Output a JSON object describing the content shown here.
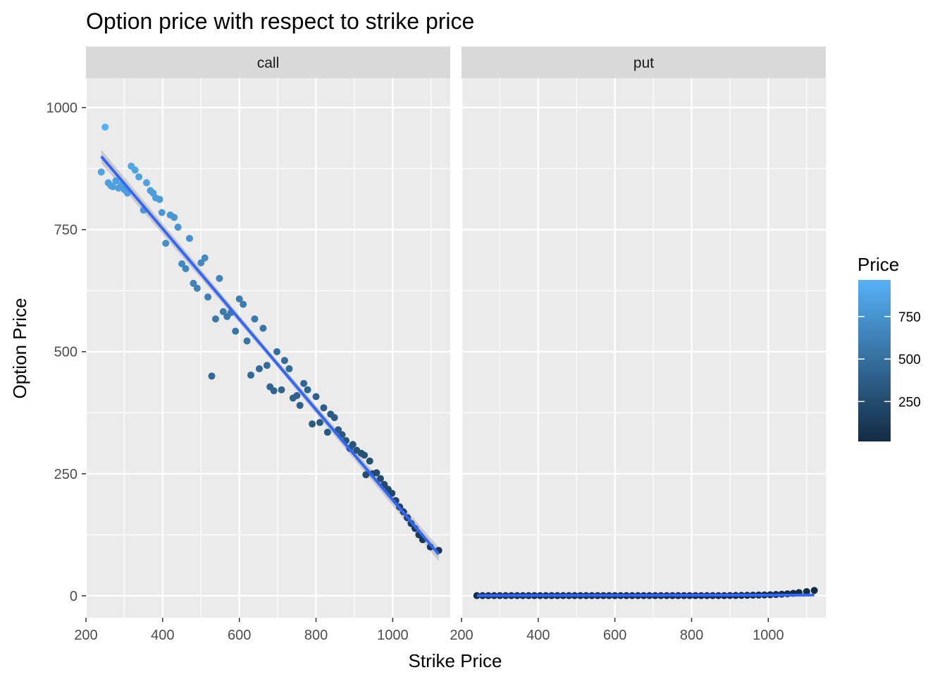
{
  "chart_data": {
    "type": "scatter",
    "title": "Option price with respect to strike price",
    "xlabel": "Strike Price",
    "ylabel": "Option Price",
    "xlim": [
      200,
      1150
    ],
    "ylim": [
      -45,
      1060
    ],
    "x_ticks": [
      200,
      400,
      600,
      800,
      1000
    ],
    "y_ticks": [
      0,
      250,
      500,
      750,
      1000
    ],
    "x_tick_labels": [
      "200",
      "400",
      "600",
      "800",
      "1000"
    ],
    "y_tick_labels": [
      "0",
      "250",
      "500",
      "750",
      "1000"
    ],
    "grid": true,
    "legend": {
      "title": "Price",
      "position": "right",
      "type": "colorbar",
      "range": [
        15,
        965
      ],
      "breaks": [
        250,
        500,
        750
      ],
      "break_labels": [
        "250",
        "500",
        "750"
      ],
      "low_color": "#132B43",
      "high_color": "#56B1F7"
    },
    "panels": [
      {
        "label": "call",
        "fit_line": {
          "x": [
            240,
            1120
          ],
          "y": [
            900,
            85
          ],
          "color": "#3366FF"
        },
        "points": [
          [
            240,
            868
          ],
          [
            250,
            960
          ],
          [
            258,
            846
          ],
          [
            265,
            840
          ],
          [
            270,
            838
          ],
          [
            278,
            850
          ],
          [
            285,
            835
          ],
          [
            292,
            842
          ],
          [
            300,
            832
          ],
          [
            308,
            825
          ],
          [
            318,
            880
          ],
          [
            328,
            872
          ],
          [
            338,
            858
          ],
          [
            350,
            790
          ],
          [
            358,
            846
          ],
          [
            368,
            830
          ],
          [
            375,
            825
          ],
          [
            382,
            815
          ],
          [
            392,
            812
          ],
          [
            398,
            785
          ],
          [
            408,
            722
          ],
          [
            420,
            780
          ],
          [
            430,
            775
          ],
          [
            440,
            755
          ],
          [
            450,
            680
          ],
          [
            460,
            670
          ],
          [
            470,
            732
          ],
          [
            480,
            640
          ],
          [
            490,
            630
          ],
          [
            500,
            682
          ],
          [
            510,
            692
          ],
          [
            518,
            612
          ],
          [
            528,
            450
          ],
          [
            538,
            567
          ],
          [
            548,
            650
          ],
          [
            558,
            582
          ],
          [
            568,
            572
          ],
          [
            578,
            580
          ],
          [
            590,
            542
          ],
          [
            600,
            608
          ],
          [
            610,
            597
          ],
          [
            620,
            522
          ],
          [
            630,
            452
          ],
          [
            640,
            567
          ],
          [
            652,
            465
          ],
          [
            662,
            548
          ],
          [
            672,
            472
          ],
          [
            680,
            428
          ],
          [
            690,
            420
          ],
          [
            698,
            500
          ],
          [
            710,
            422
          ],
          [
            718,
            482
          ],
          [
            730,
            465
          ],
          [
            740,
            405
          ],
          [
            750,
            410
          ],
          [
            758,
            390
          ],
          [
            768,
            435
          ],
          [
            778,
            422
          ],
          [
            790,
            352
          ],
          [
            800,
            408
          ],
          [
            810,
            355
          ],
          [
            820,
            385
          ],
          [
            830,
            335
          ],
          [
            838,
            372
          ],
          [
            848,
            365
          ],
          [
            858,
            340
          ],
          [
            868,
            330
          ],
          [
            878,
            318
          ],
          [
            888,
            302
          ],
          [
            896,
            310
          ],
          [
            906,
            298
          ],
          [
            918,
            292
          ],
          [
            926,
            288
          ],
          [
            930,
            248
          ],
          [
            940,
            276
          ],
          [
            948,
            250
          ],
          [
            958,
            252
          ],
          [
            968,
            240
          ],
          [
            978,
            228
          ],
          [
            988,
            218
          ],
          [
            998,
            210
          ],
          [
            1008,
            195
          ],
          [
            1018,
            182
          ],
          [
            1028,
            172
          ],
          [
            1038,
            160
          ],
          [
            1048,
            148
          ],
          [
            1058,
            138
          ],
          [
            1068,
            125
          ],
          [
            1078,
            115
          ],
          [
            1098,
            100
          ],
          [
            1120,
            93
          ]
        ]
      },
      {
        "label": "put",
        "fit_line": {
          "x": [
            240,
            1120
          ],
          "y": [
            0.5,
            1.5
          ],
          "color": "#3366FF"
        },
        "points": [
          [
            240,
            0.3
          ],
          [
            255,
            0.3
          ],
          [
            270,
            0.3
          ],
          [
            285,
            0.3
          ],
          [
            300,
            0.3
          ],
          [
            315,
            0.3
          ],
          [
            330,
            0.3
          ],
          [
            345,
            0.3
          ],
          [
            360,
            0.3
          ],
          [
            375,
            0.3
          ],
          [
            390,
            0.3
          ],
          [
            405,
            0.3
          ],
          [
            420,
            0.3
          ],
          [
            435,
            0.3
          ],
          [
            450,
            0.3
          ],
          [
            465,
            0.3
          ],
          [
            480,
            0.3
          ],
          [
            495,
            0.3
          ],
          [
            510,
            0.3
          ],
          [
            525,
            0.3
          ],
          [
            540,
            0.3
          ],
          [
            555,
            0.3
          ],
          [
            570,
            0.3
          ],
          [
            585,
            0.3
          ],
          [
            600,
            0.3
          ],
          [
            615,
            0.3
          ],
          [
            630,
            0.3
          ],
          [
            645,
            0.3
          ],
          [
            660,
            0.3
          ],
          [
            675,
            0.3
          ],
          [
            690,
            0.3
          ],
          [
            705,
            0.3
          ],
          [
            720,
            0.3
          ],
          [
            735,
            0.3
          ],
          [
            750,
            0.3
          ],
          [
            765,
            0.3
          ],
          [
            780,
            0.3
          ],
          [
            795,
            0.3
          ],
          [
            810,
            0.3
          ],
          [
            825,
            0.3
          ],
          [
            840,
            0.3
          ],
          [
            855,
            0.3
          ],
          [
            870,
            0.3
          ],
          [
            885,
            0.4
          ],
          [
            900,
            0.5
          ],
          [
            915,
            0.6
          ],
          [
            930,
            0.8
          ],
          [
            945,
            1.0
          ],
          [
            960,
            1.2
          ],
          [
            975,
            1.5
          ],
          [
            990,
            1.8
          ],
          [
            1005,
            2.2
          ],
          [
            1020,
            2.6
          ],
          [
            1035,
            3.2
          ],
          [
            1050,
            4.0
          ],
          [
            1065,
            5.0
          ],
          [
            1080,
            6.5
          ],
          [
            1100,
            8.5
          ],
          [
            1120,
            11
          ]
        ]
      }
    ]
  }
}
